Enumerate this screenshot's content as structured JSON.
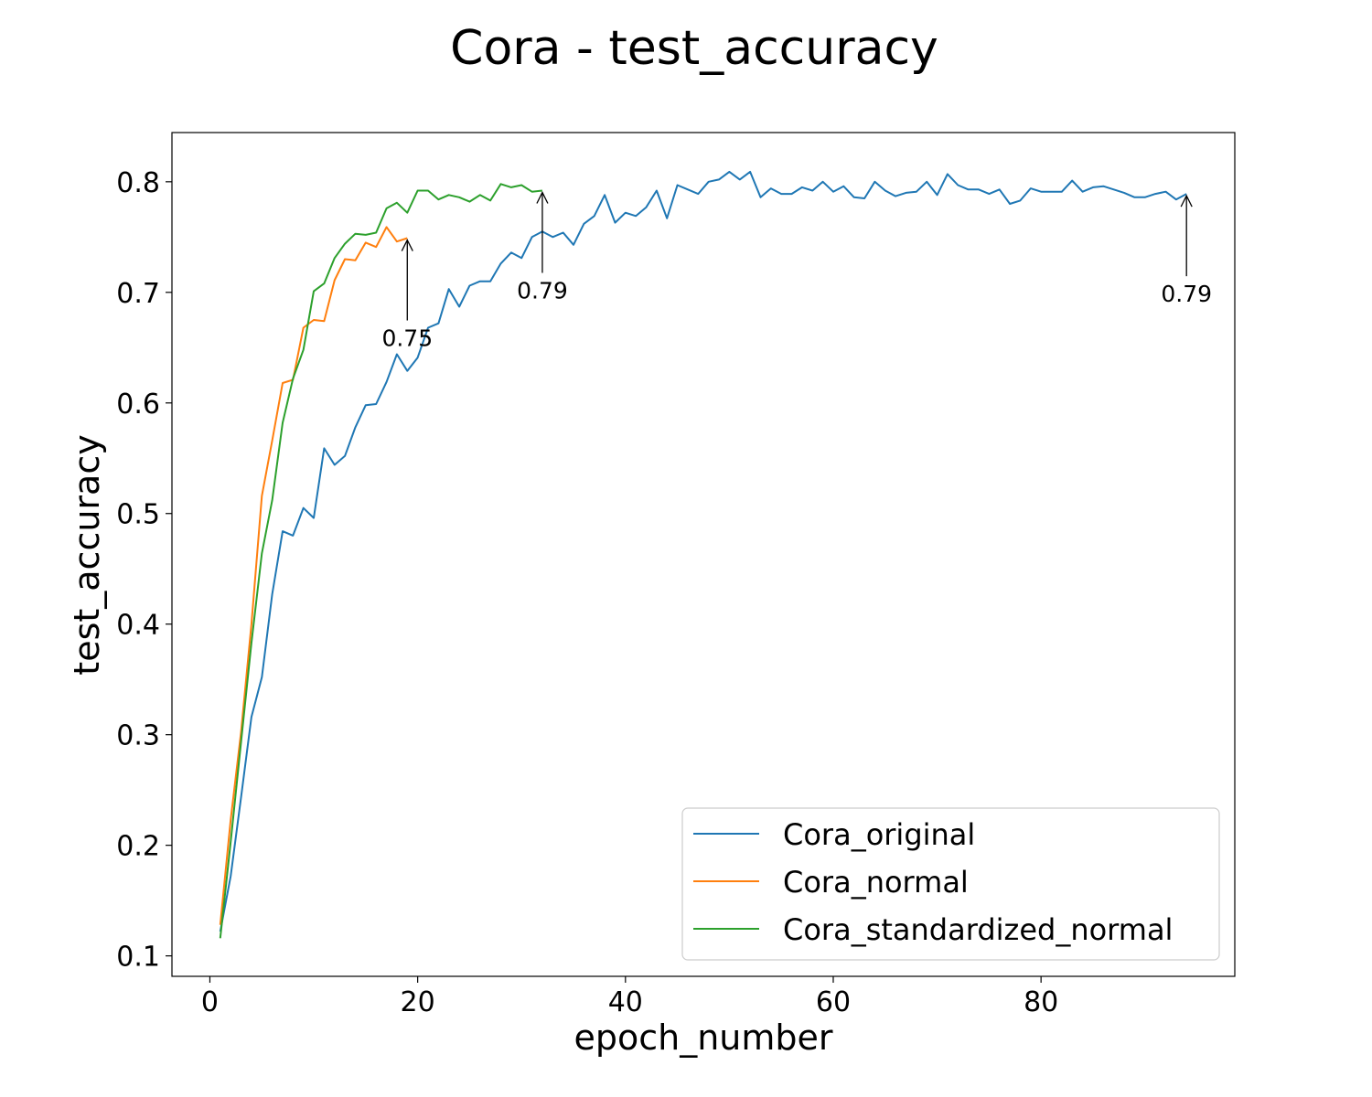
{
  "chart_data": {
    "type": "line",
    "title": "Cora - test_accuracy",
    "xlabel": "epoch_number",
    "ylabel": "test_accuracy",
    "xlim": [
      -3.65,
      98.65
    ],
    "ylim": [
      0.0815,
      0.8445
    ],
    "xticks": [
      0,
      20,
      40,
      60,
      80
    ],
    "xtick_labels": [
      "0",
      "20",
      "40",
      "60",
      "80"
    ],
    "yticks": [
      0.1,
      0.2,
      0.3,
      0.4,
      0.5,
      0.6,
      0.7,
      0.8
    ],
    "ytick_labels": [
      "0.1",
      "0.2",
      "0.3",
      "0.4",
      "0.5",
      "0.6",
      "0.7",
      "0.8"
    ],
    "grid": false,
    "legend_position": "lower-right",
    "series": [
      {
        "name": "Cora_original",
        "color": "#1f77b4",
        "x": [
          1,
          2,
          3,
          4,
          5,
          6,
          7,
          8,
          9,
          10,
          11,
          12,
          13,
          14,
          15,
          16,
          17,
          18,
          19,
          20,
          21,
          22,
          23,
          24,
          25,
          26,
          27,
          28,
          29,
          30,
          31,
          32,
          33,
          34,
          35,
          36,
          37,
          38,
          39,
          40,
          41,
          42,
          43,
          44,
          45,
          46,
          47,
          48,
          49,
          50,
          51,
          52,
          53,
          54,
          55,
          56,
          57,
          58,
          59,
          60,
          61,
          62,
          63,
          64,
          65,
          66,
          67,
          68,
          69,
          70,
          71,
          72,
          73,
          74,
          75,
          76,
          77,
          78,
          79,
          80,
          81,
          82,
          83,
          84,
          85,
          86,
          87,
          88,
          89,
          90,
          91,
          92,
          93,
          94
        ],
        "values": [
          0.122,
          0.172,
          0.243,
          0.316,
          0.352,
          0.427,
          0.484,
          0.48,
          0.505,
          0.496,
          0.559,
          0.544,
          0.552,
          0.578,
          0.598,
          0.599,
          0.619,
          0.644,
          0.629,
          0.641,
          0.668,
          0.672,
          0.703,
          0.687,
          0.706,
          0.71,
          0.71,
          0.726,
          0.736,
          0.731,
          0.75,
          0.755,
          0.75,
          0.754,
          0.743,
          0.762,
          0.769,
          0.788,
          0.763,
          0.772,
          0.769,
          0.777,
          0.792,
          0.767,
          0.797,
          0.793,
          0.789,
          0.8,
          0.802,
          0.809,
          0.802,
          0.809,
          0.786,
          0.794,
          0.789,
          0.789,
          0.795,
          0.792,
          0.8,
          0.791,
          0.796,
          0.786,
          0.785,
          0.8,
          0.792,
          0.787,
          0.79,
          0.791,
          0.8,
          0.788,
          0.807,
          0.797,
          0.793,
          0.793,
          0.789,
          0.793,
          0.78,
          0.783,
          0.794,
          0.791,
          0.791,
          0.791,
          0.801,
          0.791,
          0.795,
          0.796,
          0.793,
          0.79,
          0.786,
          0.786,
          0.789,
          0.791,
          0.784,
          0.789
        ]
      },
      {
        "name": "Cora_normal",
        "color": "#ff7f0e",
        "x": [
          1,
          2,
          3,
          4,
          5,
          6,
          7,
          8,
          9,
          10,
          11,
          12,
          13,
          14,
          15,
          16,
          17,
          18,
          19
        ],
        "values": [
          0.128,
          0.223,
          0.302,
          0.4,
          0.516,
          0.566,
          0.618,
          0.621,
          0.668,
          0.675,
          0.674,
          0.711,
          0.73,
          0.729,
          0.745,
          0.741,
          0.759,
          0.746,
          0.749
        ]
      },
      {
        "name": "Cora_standardized_normal",
        "color": "#2ca02c",
        "x": [
          1,
          2,
          3,
          4,
          5,
          6,
          7,
          8,
          9,
          10,
          11,
          12,
          13,
          14,
          15,
          16,
          17,
          18,
          19,
          20,
          21,
          22,
          23,
          24,
          25,
          26,
          27,
          28,
          29,
          30,
          31,
          32
        ],
        "values": [
          0.116,
          0.203,
          0.293,
          0.383,
          0.464,
          0.512,
          0.582,
          0.622,
          0.648,
          0.701,
          0.708,
          0.731,
          0.744,
          0.753,
          0.752,
          0.754,
          0.776,
          0.781,
          0.772,
          0.792,
          0.792,
          0.784,
          0.788,
          0.786,
          0.782,
          0.788,
          0.783,
          0.798,
          0.795,
          0.797,
          0.791,
          0.792
        ]
      }
    ],
    "annotations": [
      {
        "text": "0.75",
        "x": 19,
        "y": 0.749,
        "series": "Cora_normal"
      },
      {
        "text": "0.79",
        "x": 32,
        "y": 0.792,
        "series": "Cora_standardized_normal"
      },
      {
        "text": "0.79",
        "x": 94,
        "y": 0.789,
        "series": "Cora_original"
      }
    ]
  }
}
